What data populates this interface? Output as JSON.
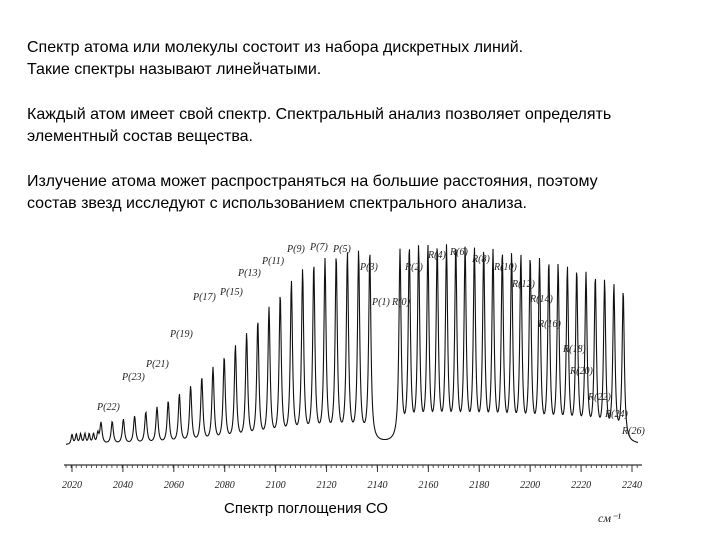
{
  "paragraphs": [
    [
      "Спектр атома или молекулы состоит из набора дискретных линий.",
      "Такие спектры называют линейчатыми."
    ],
    [
      "Каждый атом имеет свой спектр. Спектральный анализ позволяет определять",
      "элементный состав вещества."
    ],
    [
      "Излучение атома может распространяться на большие расстояния, поэтому",
      "состав звезд исследуют с использованием спектрального анализа."
    ]
  ],
  "figure": {
    "xlim": [
      2020,
      2240
    ],
    "xticks": [
      2020,
      2040,
      2060,
      2080,
      2100,
      2120,
      2140,
      2160,
      2180,
      2200,
      2220,
      2240
    ],
    "unit": "см⁻¹",
    "caption": "Спектр поглощения СО",
    "line_labels": [
      "P(22)",
      "P(23)",
      "P(21)",
      "P(19)",
      "P(17)",
      "P(15)",
      "P(13)",
      "P(11)",
      "P(9)",
      "P(7)",
      "P(5)",
      "P(3)",
      "P(1)",
      "R(0)",
      "R(2)",
      "R(4)",
      "R(6)",
      "R(8)",
      "R(10)",
      "R(12)",
      "R(14)",
      "R(16)",
      "R(18)",
      "R(20)",
      "R(22)",
      "R(24)",
      "R(26)"
    ]
  }
}
